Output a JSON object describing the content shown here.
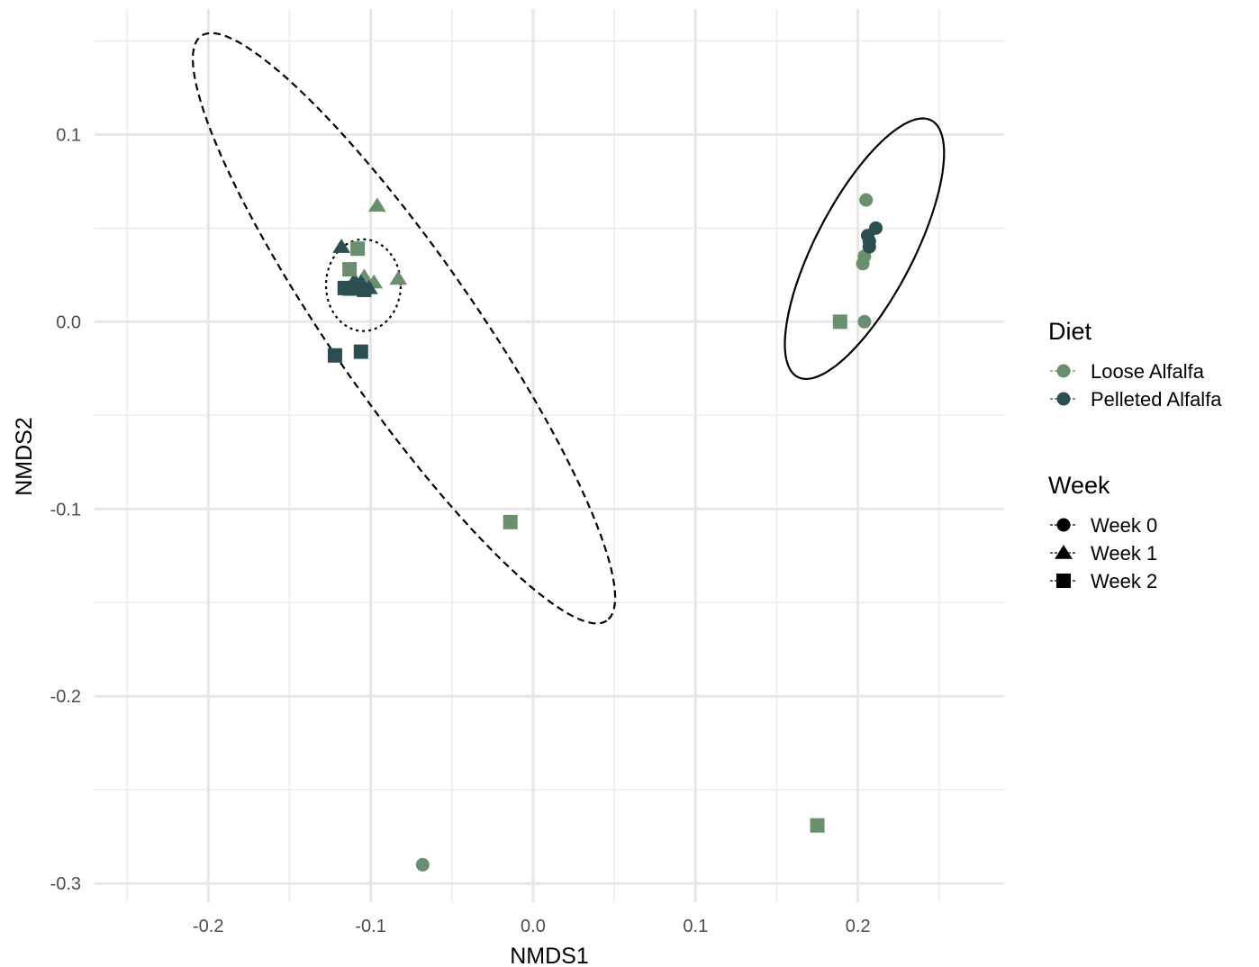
{
  "chart_data": {
    "type": "scatter",
    "xlabel": "NMDS1",
    "ylabel": "NMDS2",
    "xlim": [
      -0.27,
      0.29
    ],
    "ylim": [
      -0.31,
      0.167
    ],
    "x_ticks": [
      -0.2,
      -0.1,
      0.0,
      0.1,
      0.2
    ],
    "x_tick_labels": [
      "-0.2",
      "-0.1",
      "0.0",
      "0.1",
      "0.2"
    ],
    "y_ticks": [
      -0.3,
      -0.2,
      -0.1,
      0.0,
      0.1
    ],
    "y_tick_labels": [
      "-0.3",
      "-0.2",
      "-0.1",
      "0.0",
      "0.1"
    ],
    "grid": true,
    "legend_position": "right",
    "colors": {
      "Loose Alfalfa": "#6b8f6e",
      "Pelleted Alfalfa": "#2d4e50"
    },
    "legend": {
      "diet_title": "Diet",
      "diet_items": [
        {
          "label": "Loose Alfalfa",
          "color": "#6b8f6e",
          "shape": "circle"
        },
        {
          "label": "Pelleted Alfalfa",
          "color": "#2d4e50",
          "shape": "circle"
        }
      ],
      "week_title": "Week",
      "week_items": [
        {
          "label": "Week 0",
          "shape": "circle"
        },
        {
          "label": "Week 1",
          "shape": "triangle"
        },
        {
          "label": "Week 2",
          "shape": "square"
        }
      ]
    },
    "points": [
      {
        "x": 0.205,
        "y": 0.065,
        "diet": "Loose Alfalfa",
        "week": "Week 0"
      },
      {
        "x": 0.204,
        "y": 0.035,
        "diet": "Loose Alfalfa",
        "week": "Week 0"
      },
      {
        "x": 0.203,
        "y": 0.031,
        "diet": "Loose Alfalfa",
        "week": "Week 0"
      },
      {
        "x": 0.204,
        "y": 0.0,
        "diet": "Loose Alfalfa",
        "week": "Week 0"
      },
      {
        "x": -0.068,
        "y": -0.29,
        "diet": "Loose Alfalfa",
        "week": "Week 0"
      },
      {
        "x": 0.211,
        "y": 0.05,
        "diet": "Pelleted Alfalfa",
        "week": "Week 0"
      },
      {
        "x": 0.206,
        "y": 0.046,
        "diet": "Pelleted Alfalfa",
        "week": "Week 0"
      },
      {
        "x": 0.207,
        "y": 0.043,
        "diet": "Pelleted Alfalfa",
        "week": "Week 0"
      },
      {
        "x": 0.207,
        "y": 0.04,
        "diet": "Pelleted Alfalfa",
        "week": "Week 0"
      },
      {
        "x": -0.096,
        "y": 0.062,
        "diet": "Loose Alfalfa",
        "week": "Week 1"
      },
      {
        "x": -0.083,
        "y": 0.023,
        "diet": "Loose Alfalfa",
        "week": "Week 1"
      },
      {
        "x": -0.098,
        "y": 0.021,
        "diet": "Loose Alfalfa",
        "week": "Week 1"
      },
      {
        "x": -0.104,
        "y": 0.024,
        "diet": "Loose Alfalfa",
        "week": "Week 1"
      },
      {
        "x": -0.112,
        "y": 0.017,
        "diet": "Loose Alfalfa",
        "week": "Week 1"
      },
      {
        "x": -0.118,
        "y": 0.04,
        "diet": "Pelleted Alfalfa",
        "week": "Week 1"
      },
      {
        "x": -0.11,
        "y": 0.022,
        "diet": "Pelleted Alfalfa",
        "week": "Week 1"
      },
      {
        "x": -0.106,
        "y": 0.021,
        "diet": "Pelleted Alfalfa",
        "week": "Week 1"
      },
      {
        "x": -0.101,
        "y": 0.018,
        "diet": "Pelleted Alfalfa",
        "week": "Week 1"
      },
      {
        "x": -0.108,
        "y": 0.039,
        "diet": "Loose Alfalfa",
        "week": "Week 2"
      },
      {
        "x": -0.113,
        "y": 0.028,
        "diet": "Loose Alfalfa",
        "week": "Week 2"
      },
      {
        "x": -0.11,
        "y": 0.018,
        "diet": "Loose Alfalfa",
        "week": "Week 2"
      },
      {
        "x": -0.014,
        "y": -0.107,
        "diet": "Loose Alfalfa",
        "week": "Week 2"
      },
      {
        "x": 0.189,
        "y": 0.0,
        "diet": "Loose Alfalfa",
        "week": "Week 2"
      },
      {
        "x": 0.175,
        "y": -0.269,
        "diet": "Loose Alfalfa",
        "week": "Week 2"
      },
      {
        "x": -0.116,
        "y": 0.018,
        "diet": "Pelleted Alfalfa",
        "week": "Week 2"
      },
      {
        "x": -0.11,
        "y": 0.018,
        "diet": "Pelleted Alfalfa",
        "week": "Week 2"
      },
      {
        "x": -0.104,
        "y": 0.017,
        "diet": "Pelleted Alfalfa",
        "week": "Week 2"
      },
      {
        "x": -0.122,
        "y": -0.018,
        "diet": "Pelleted Alfalfa",
        "week": "Week 2"
      },
      {
        "x": -0.106,
        "y": -0.016,
        "diet": "Pelleted Alfalfa",
        "week": "Week 2"
      }
    ],
    "ellipses": [
      {
        "cx": -0.0795,
        "cy": -0.0035,
        "rx": 0.2,
        "ry": 0.042,
        "angle_deg": -51,
        "style": "dashed"
      },
      {
        "cx": -0.1045,
        "cy": 0.0195,
        "rx": 0.023,
        "ry": 0.0245,
        "angle_deg": 0,
        "style": "dotted"
      },
      {
        "cx": 0.204,
        "cy": 0.039,
        "rx": 0.08,
        "ry": 0.029,
        "angle_deg": 58,
        "style": "solid"
      }
    ]
  }
}
